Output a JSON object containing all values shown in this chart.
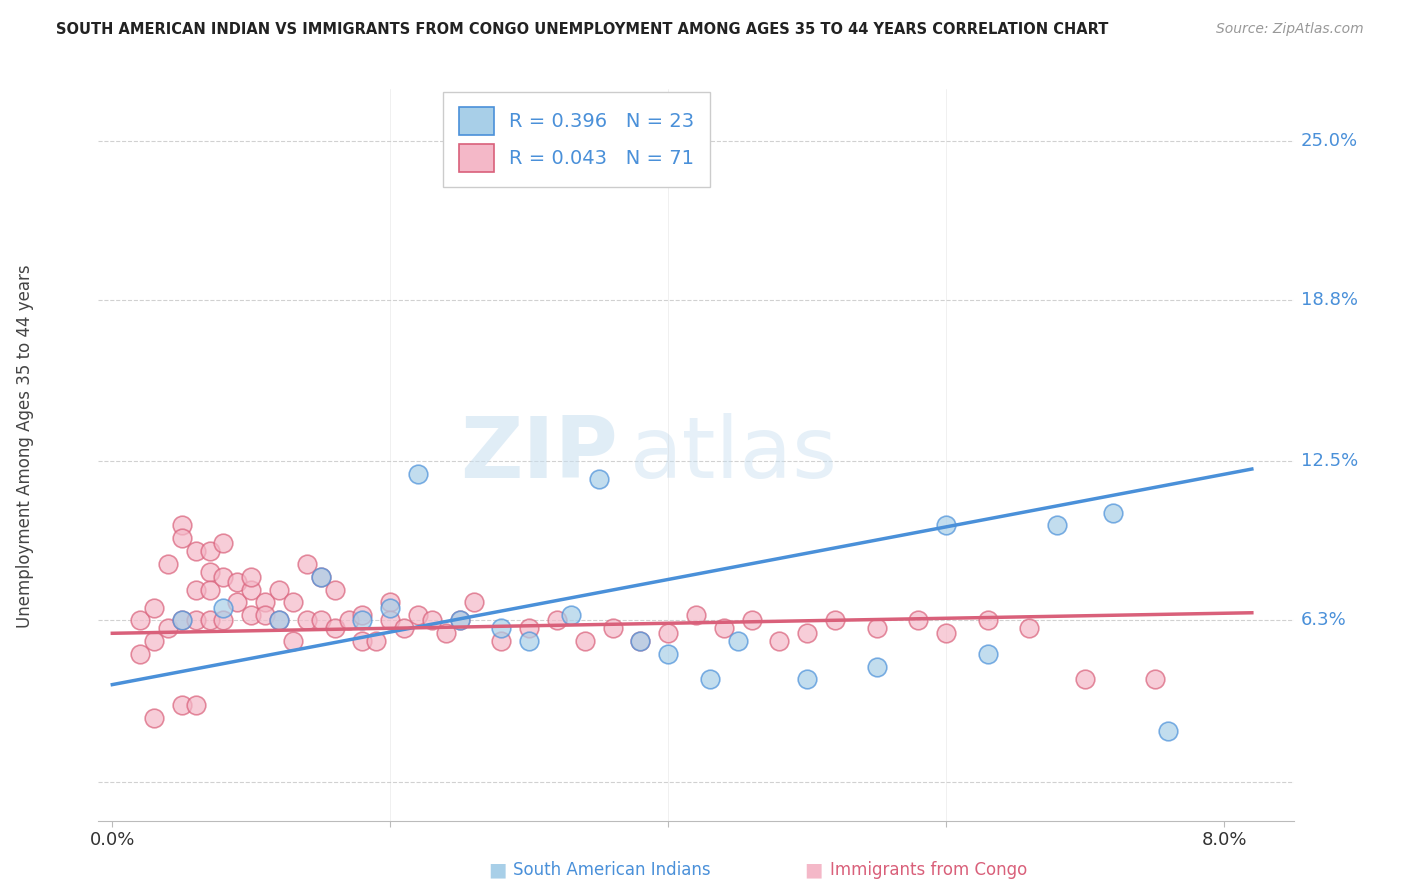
{
  "title": "SOUTH AMERICAN INDIAN VS IMMIGRANTS FROM CONGO UNEMPLOYMENT AMONG AGES 35 TO 44 YEARS CORRELATION CHART",
  "source": "Source: ZipAtlas.com",
  "ylabel": "Unemployment Among Ages 35 to 44 years",
  "y_ticks": [
    0.0,
    0.063,
    0.125,
    0.188,
    0.25
  ],
  "y_tick_labels": [
    "",
    "6.3%",
    "12.5%",
    "18.8%",
    "25.0%"
  ],
  "x_ticks": [
    0.0,
    0.02,
    0.04,
    0.06,
    0.08
  ],
  "x_tick_labels": [
    "0.0%",
    "",
    "",
    "",
    "8.0%"
  ],
  "legend_r1": "R = 0.396",
  "legend_n1": "N = 23",
  "legend_r2": "R = 0.043",
  "legend_n2": "N = 71",
  "color_blue": "#a8cfe8",
  "color_pink": "#f4b8c8",
  "line_blue": "#4a90d9",
  "line_pink": "#d9607a",
  "watermark_zip": "ZIP",
  "watermark_atlas": "atlas",
  "label1": "South American Indians",
  "label2": "Immigrants from Congo",
  "blue_x": [
    0.005,
    0.008,
    0.012,
    0.015,
    0.018,
    0.02,
    0.022,
    0.025,
    0.028,
    0.03,
    0.033,
    0.035,
    0.038,
    0.04,
    0.043,
    0.045,
    0.05,
    0.055,
    0.06,
    0.063,
    0.068,
    0.072,
    0.076
  ],
  "blue_y": [
    0.063,
    0.068,
    0.063,
    0.08,
    0.063,
    0.068,
    0.12,
    0.063,
    0.06,
    0.055,
    0.065,
    0.118,
    0.055,
    0.05,
    0.04,
    0.055,
    0.04,
    0.045,
    0.1,
    0.05,
    0.1,
    0.105,
    0.02
  ],
  "pink_x": [
    0.002,
    0.002,
    0.003,
    0.003,
    0.003,
    0.004,
    0.004,
    0.005,
    0.005,
    0.005,
    0.005,
    0.006,
    0.006,
    0.006,
    0.006,
    0.007,
    0.007,
    0.007,
    0.007,
    0.008,
    0.008,
    0.008,
    0.009,
    0.009,
    0.01,
    0.01,
    0.01,
    0.011,
    0.011,
    0.012,
    0.012,
    0.013,
    0.013,
    0.014,
    0.014,
    0.015,
    0.015,
    0.016,
    0.016,
    0.017,
    0.018,
    0.018,
    0.019,
    0.02,
    0.02,
    0.021,
    0.022,
    0.023,
    0.024,
    0.025,
    0.026,
    0.028,
    0.03,
    0.032,
    0.034,
    0.036,
    0.038,
    0.04,
    0.042,
    0.044,
    0.046,
    0.048,
    0.05,
    0.052,
    0.055,
    0.058,
    0.06,
    0.063,
    0.066,
    0.07,
    0.075
  ],
  "pink_y": [
    0.063,
    0.05,
    0.068,
    0.055,
    0.025,
    0.085,
    0.06,
    0.1,
    0.095,
    0.063,
    0.03,
    0.09,
    0.075,
    0.063,
    0.03,
    0.082,
    0.075,
    0.063,
    0.09,
    0.093,
    0.08,
    0.063,
    0.078,
    0.07,
    0.065,
    0.075,
    0.08,
    0.07,
    0.065,
    0.075,
    0.063,
    0.07,
    0.055,
    0.085,
    0.063,
    0.08,
    0.063,
    0.075,
    0.06,
    0.063,
    0.065,
    0.055,
    0.055,
    0.07,
    0.063,
    0.06,
    0.065,
    0.063,
    0.058,
    0.063,
    0.07,
    0.055,
    0.06,
    0.063,
    0.055,
    0.06,
    0.055,
    0.058,
    0.065,
    0.06,
    0.063,
    0.055,
    0.058,
    0.063,
    0.06,
    0.063,
    0.058,
    0.063,
    0.06,
    0.04,
    0.04
  ],
  "xlim": [
    -0.001,
    0.085
  ],
  "ylim": [
    -0.015,
    0.27
  ],
  "blue_line_x": [
    0.0,
    0.082
  ],
  "blue_line_y": [
    0.038,
    0.122
  ],
  "pink_line_x": [
    0.0,
    0.082
  ],
  "pink_line_y": [
    0.058,
    0.066
  ]
}
